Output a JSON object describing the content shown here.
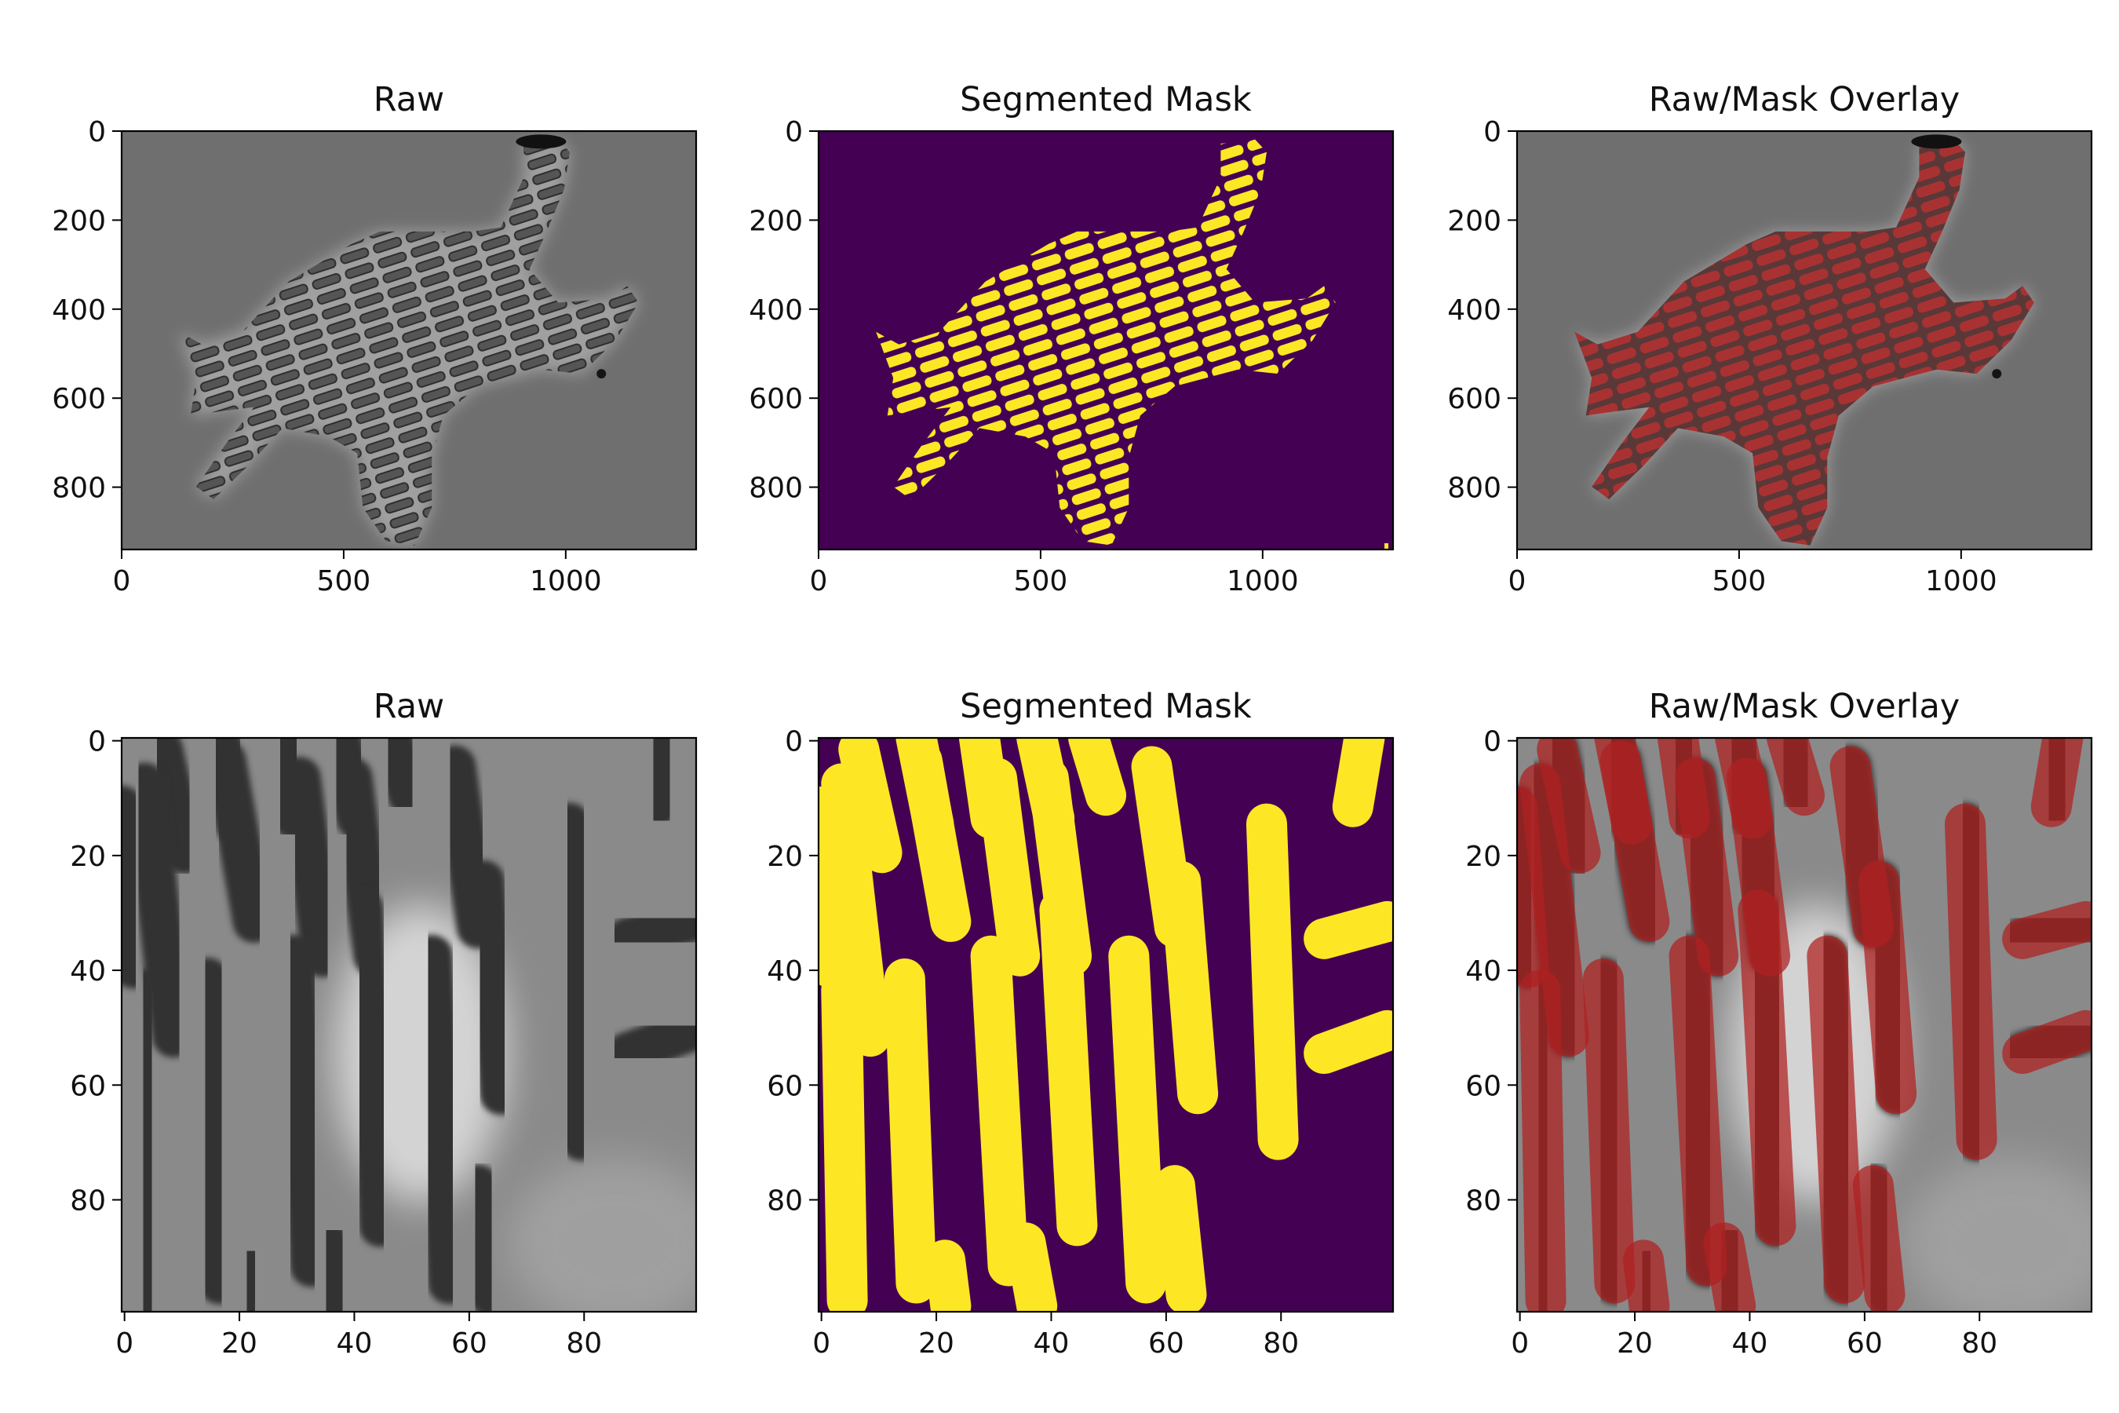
{
  "figure": {
    "panels": [
      {
        "title": "Raw",
        "kind": "raw-full",
        "xticks": [
          "0",
          "500",
          "1000"
        ],
        "yticks": [
          "0",
          "200",
          "400",
          "600",
          "800"
        ]
      },
      {
        "title": "Segmented Mask",
        "kind": "mask-full",
        "xticks": [
          "0",
          "500",
          "1000"
        ],
        "yticks": [
          "0",
          "200",
          "400",
          "600",
          "800"
        ]
      },
      {
        "title": "Raw/Mask Overlay",
        "kind": "overlay-full",
        "xticks": [
          "0",
          "500",
          "1000"
        ],
        "yticks": [
          "0",
          "200",
          "400",
          "600",
          "800"
        ]
      },
      {
        "title": "Raw",
        "kind": "raw-zoom",
        "xticks": [
          "0",
          "20",
          "40",
          "60",
          "80"
        ],
        "yticks": [
          "0",
          "20",
          "40",
          "60",
          "80"
        ]
      },
      {
        "title": "Segmented Mask",
        "kind": "mask-zoom",
        "xticks": [
          "0",
          "20",
          "40",
          "60",
          "80"
        ],
        "yticks": [
          "0",
          "20",
          "40",
          "60",
          "80"
        ]
      },
      {
        "title": "Raw/Mask Overlay",
        "kind": "overlay-zoom",
        "xticks": [
          "0",
          "20",
          "40",
          "60",
          "80"
        ],
        "yticks": [
          "0",
          "20",
          "40",
          "60",
          "80"
        ]
      }
    ],
    "colors": {
      "raw_background": "#6f6f6f",
      "cell_dark": "#3a3a3a",
      "mask_background": "#440154",
      "mask_foreground": "#fde725",
      "overlay_tint": "#b02020"
    }
  }
}
